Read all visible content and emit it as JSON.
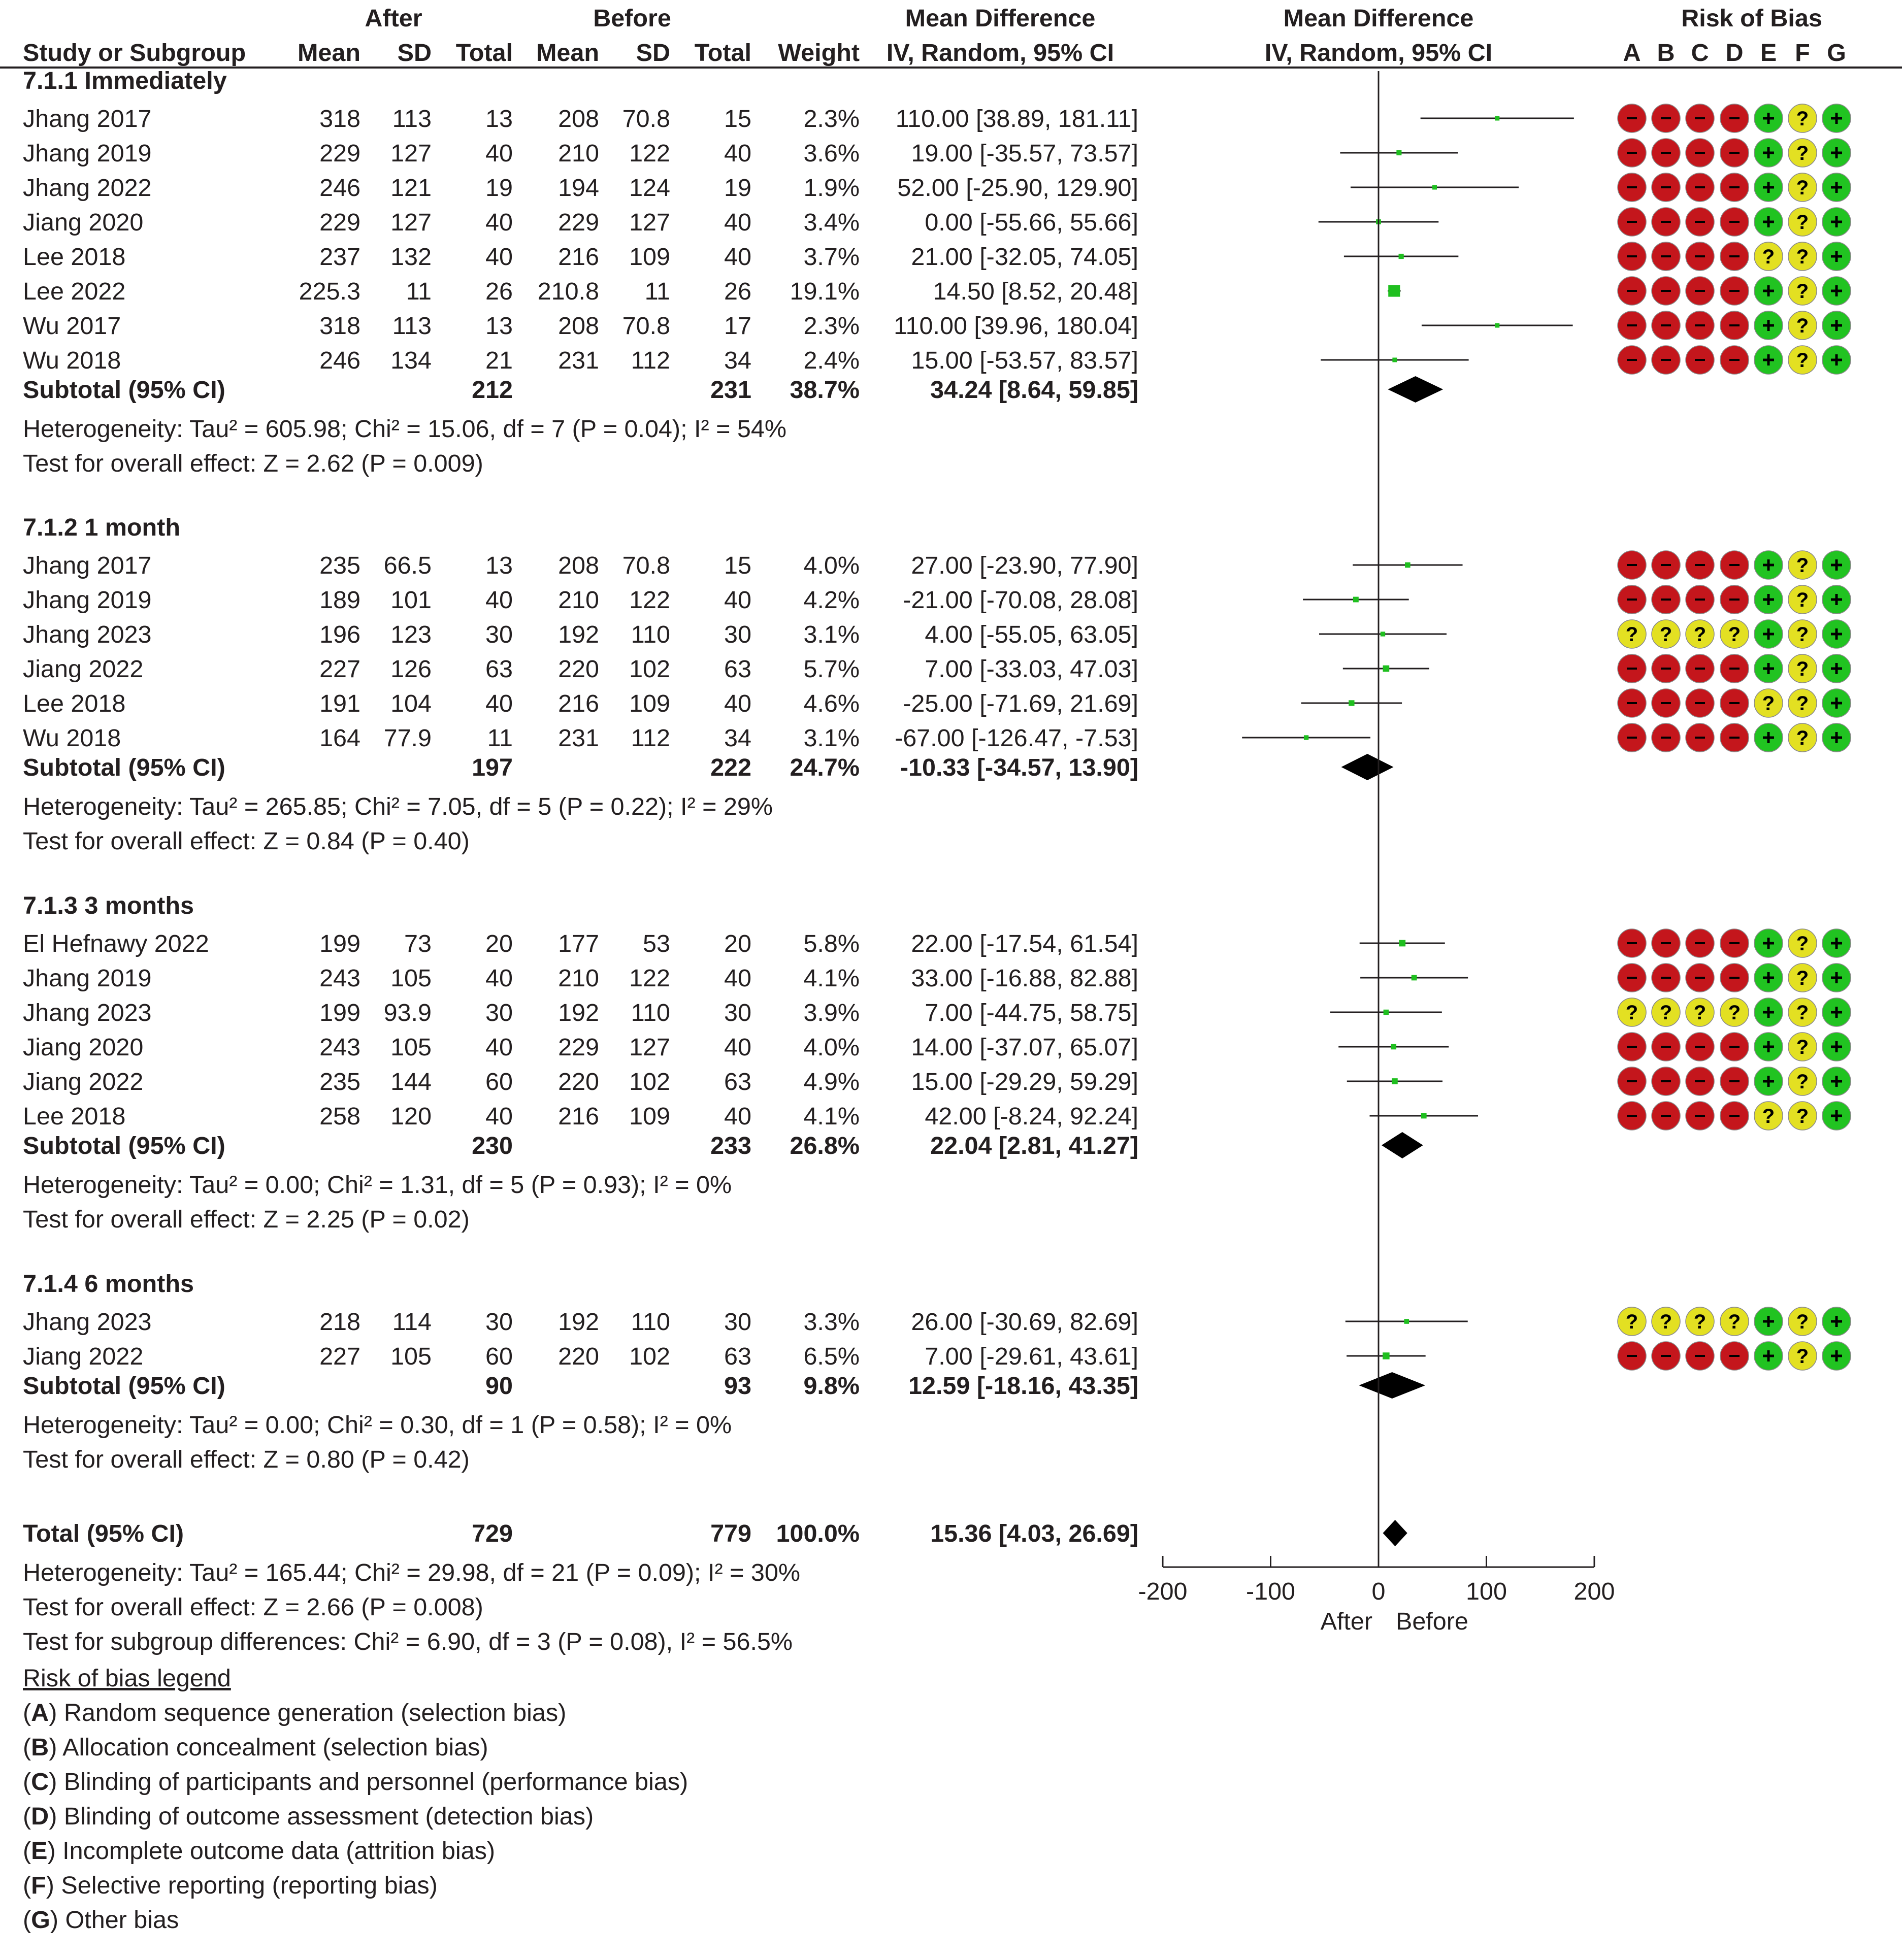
{
  "chart_data": {
    "type": "forest",
    "column_groups": [
      "After",
      "Before",
      "Mean Difference",
      "Mean Difference",
      "Risk of Bias"
    ],
    "columns": [
      "Study or Subgroup",
      "Mean",
      "SD",
      "Total",
      "Mean",
      "SD",
      "Total",
      "Weight",
      "IV, Random, 95% CI",
      "IV, Random, 95% CI"
    ],
    "bias_columns": [
      "A",
      "B",
      "C",
      "D",
      "E",
      "F",
      "G"
    ],
    "subgroups": [
      {
        "title": "7.1.1 Immediately",
        "studies": [
          {
            "study": "Jhang 2017",
            "after_mean": "318",
            "after_sd": "113",
            "after_total": "13",
            "before_mean": "208",
            "before_sd": "70.8",
            "before_total": "15",
            "weight": "2.3%",
            "ci_text": "110.00 [38.89, 181.11]",
            "md": 110.0,
            "lo": 38.89,
            "hi": 181.11,
            "w": 2.3,
            "bias": [
              "-",
              "-",
              "-",
              "-",
              "+",
              "?",
              "+"
            ]
          },
          {
            "study": "Jhang 2019",
            "after_mean": "229",
            "after_sd": "127",
            "after_total": "40",
            "before_mean": "210",
            "before_sd": "122",
            "before_total": "40",
            "weight": "3.6%",
            "ci_text": "19.00 [-35.57, 73.57]",
            "md": 19.0,
            "lo": -35.57,
            "hi": 73.57,
            "w": 3.6,
            "bias": [
              "-",
              "-",
              "-",
              "-",
              "+",
              "?",
              "+"
            ]
          },
          {
            "study": "Jhang 2022",
            "after_mean": "246",
            "after_sd": "121",
            "after_total": "19",
            "before_mean": "194",
            "before_sd": "124",
            "before_total": "19",
            "weight": "1.9%",
            "ci_text": "52.00 [-25.90, 129.90]",
            "md": 52.0,
            "lo": -25.9,
            "hi": 129.9,
            "w": 1.9,
            "bias": [
              "-",
              "-",
              "-",
              "-",
              "+",
              "?",
              "+"
            ]
          },
          {
            "study": "Jiang 2020",
            "after_mean": "229",
            "after_sd": "127",
            "after_total": "40",
            "before_mean": "229",
            "before_sd": "127",
            "before_total": "40",
            "weight": "3.4%",
            "ci_text": "0.00 [-55.66, 55.66]",
            "md": 0.0,
            "lo": -55.66,
            "hi": 55.66,
            "w": 3.4,
            "bias": [
              "-",
              "-",
              "-",
              "-",
              "+",
              "?",
              "+"
            ]
          },
          {
            "study": "Lee 2018",
            "after_mean": "237",
            "after_sd": "132",
            "after_total": "40",
            "before_mean": "216",
            "before_sd": "109",
            "before_total": "40",
            "weight": "3.7%",
            "ci_text": "21.00 [-32.05, 74.05]",
            "md": 21.0,
            "lo": -32.05,
            "hi": 74.05,
            "w": 3.7,
            "bias": [
              "-",
              "-",
              "-",
              "-",
              "?",
              "?",
              "+"
            ]
          },
          {
            "study": "Lee 2022",
            "after_mean": "225.3",
            "after_sd": "11",
            "after_total": "26",
            "before_mean": "210.8",
            "before_sd": "11",
            "before_total": "26",
            "weight": "19.1%",
            "ci_text": "14.50 [8.52, 20.48]",
            "md": 14.5,
            "lo": 8.52,
            "hi": 20.48,
            "w": 19.1,
            "bias": [
              "-",
              "-",
              "-",
              "-",
              "+",
              "?",
              "+"
            ]
          },
          {
            "study": "Wu 2017",
            "after_mean": "318",
            "after_sd": "113",
            "after_total": "13",
            "before_mean": "208",
            "before_sd": "70.8",
            "before_total": "17",
            "weight": "2.3%",
            "ci_text": "110.00 [39.96, 180.04]",
            "md": 110.0,
            "lo": 39.96,
            "hi": 180.04,
            "w": 2.3,
            "bias": [
              "-",
              "-",
              "-",
              "-",
              "+",
              "?",
              "+"
            ]
          },
          {
            "study": "Wu 2018",
            "after_mean": "246",
            "after_sd": "134",
            "after_total": "21",
            "before_mean": "231",
            "before_sd": "112",
            "before_total": "34",
            "weight": "2.4%",
            "ci_text": "15.00 [-53.57, 83.57]",
            "md": 15.0,
            "lo": -53.57,
            "hi": 83.57,
            "w": 2.4,
            "bias": [
              "-",
              "-",
              "-",
              "-",
              "+",
              "?",
              "+"
            ]
          }
        ],
        "subtotal": {
          "label": "Subtotal (95% CI)",
          "after_total": "212",
          "before_total": "231",
          "weight": "38.7%",
          "ci_text": "34.24 [8.64, 59.85]",
          "md": 34.24,
          "lo": 8.64,
          "hi": 59.85
        },
        "heterogeneity": "Heterogeneity: Tau² = 605.98; Chi² = 15.06, df = 7 (P = 0.04); I² = 54%",
        "overall": "Test for overall effect: Z = 2.62 (P = 0.009)"
      },
      {
        "title": "7.1.2 1 month",
        "studies": [
          {
            "study": "Jhang 2017",
            "after_mean": "235",
            "after_sd": "66.5",
            "after_total": "13",
            "before_mean": "208",
            "before_sd": "70.8",
            "before_total": "15",
            "weight": "4.0%",
            "ci_text": "27.00 [-23.90, 77.90]",
            "md": 27.0,
            "lo": -23.9,
            "hi": 77.9,
            "w": 4.0,
            "bias": [
              "-",
              "-",
              "-",
              "-",
              "+",
              "?",
              "+"
            ]
          },
          {
            "study": "Jhang 2019",
            "after_mean": "189",
            "after_sd": "101",
            "after_total": "40",
            "before_mean": "210",
            "before_sd": "122",
            "before_total": "40",
            "weight": "4.2%",
            "ci_text": "-21.00 [-70.08, 28.08]",
            "md": -21.0,
            "lo": -70.08,
            "hi": 28.08,
            "w": 4.2,
            "bias": [
              "-",
              "-",
              "-",
              "-",
              "+",
              "?",
              "+"
            ]
          },
          {
            "study": "Jhang 2023",
            "after_mean": "196",
            "after_sd": "123",
            "after_total": "30",
            "before_mean": "192",
            "before_sd": "110",
            "before_total": "30",
            "weight": "3.1%",
            "ci_text": "4.00 [-55.05, 63.05]",
            "md": 4.0,
            "lo": -55.05,
            "hi": 63.05,
            "w": 3.1,
            "bias": [
              "?",
              "?",
              "?",
              "?",
              "+",
              "?",
              "+"
            ]
          },
          {
            "study": "Jiang 2022",
            "after_mean": "227",
            "after_sd": "126",
            "after_total": "63",
            "before_mean": "220",
            "before_sd": "102",
            "before_total": "63",
            "weight": "5.7%",
            "ci_text": "7.00 [-33.03, 47.03]",
            "md": 7.0,
            "lo": -33.03,
            "hi": 47.03,
            "w": 5.7,
            "bias": [
              "-",
              "-",
              "-",
              "-",
              "+",
              "?",
              "+"
            ]
          },
          {
            "study": "Lee 2018",
            "after_mean": "191",
            "after_sd": "104",
            "after_total": "40",
            "before_mean": "216",
            "before_sd": "109",
            "before_total": "40",
            "weight": "4.6%",
            "ci_text": "-25.00 [-71.69, 21.69]",
            "md": -25.0,
            "lo": -71.69,
            "hi": 21.69,
            "w": 4.6,
            "bias": [
              "-",
              "-",
              "-",
              "-",
              "?",
              "?",
              "+"
            ]
          },
          {
            "study": "Wu 2018",
            "after_mean": "164",
            "after_sd": "77.9",
            "after_total": "11",
            "before_mean": "231",
            "before_sd": "112",
            "before_total": "34",
            "weight": "3.1%",
            "ci_text": "-67.00 [-126.47, -7.53]",
            "md": -67.0,
            "lo": -126.47,
            "hi": -7.53,
            "w": 3.1,
            "bias": [
              "-",
              "-",
              "-",
              "-",
              "+",
              "?",
              "+"
            ]
          }
        ],
        "subtotal": {
          "label": "Subtotal (95% CI)",
          "after_total": "197",
          "before_total": "222",
          "weight": "24.7%",
          "ci_text": "-10.33 [-34.57, 13.90]",
          "md": -10.33,
          "lo": -34.57,
          "hi": 13.9
        },
        "heterogeneity": "Heterogeneity: Tau² = 265.85; Chi² = 7.05, df = 5 (P = 0.22); I² = 29%",
        "overall": "Test for overall effect: Z = 0.84 (P = 0.40)"
      },
      {
        "title": "7.1.3 3 months",
        "studies": [
          {
            "study": "El Hefnawy 2022",
            "after_mean": "199",
            "after_sd": "73",
            "after_total": "20",
            "before_mean": "177",
            "before_sd": "53",
            "before_total": "20",
            "weight": "5.8%",
            "ci_text": "22.00 [-17.54, 61.54]",
            "md": 22.0,
            "lo": -17.54,
            "hi": 61.54,
            "w": 5.8,
            "bias": [
              "-",
              "-",
              "-",
              "-",
              "+",
              "?",
              "+"
            ]
          },
          {
            "study": "Jhang 2019",
            "after_mean": "243",
            "after_sd": "105",
            "after_total": "40",
            "before_mean": "210",
            "before_sd": "122",
            "before_total": "40",
            "weight": "4.1%",
            "ci_text": "33.00 [-16.88, 82.88]",
            "md": 33.0,
            "lo": -16.88,
            "hi": 82.88,
            "w": 4.1,
            "bias": [
              "-",
              "-",
              "-",
              "-",
              "+",
              "?",
              "+"
            ]
          },
          {
            "study": "Jhang 2023",
            "after_mean": "199",
            "after_sd": "93.9",
            "after_total": "30",
            "before_mean": "192",
            "before_sd": "110",
            "before_total": "30",
            "weight": "3.9%",
            "ci_text": "7.00 [-44.75, 58.75]",
            "md": 7.0,
            "lo": -44.75,
            "hi": 58.75,
            "w": 3.9,
            "bias": [
              "?",
              "?",
              "?",
              "?",
              "+",
              "?",
              "+"
            ]
          },
          {
            "study": "Jiang 2020",
            "after_mean": "243",
            "after_sd": "105",
            "after_total": "40",
            "before_mean": "229",
            "before_sd": "127",
            "before_total": "40",
            "weight": "4.0%",
            "ci_text": "14.00 [-37.07, 65.07]",
            "md": 14.0,
            "lo": -37.07,
            "hi": 65.07,
            "w": 4.0,
            "bias": [
              "-",
              "-",
              "-",
              "-",
              "+",
              "?",
              "+"
            ]
          },
          {
            "study": "Jiang 2022",
            "after_mean": "235",
            "after_sd": "144",
            "after_total": "60",
            "before_mean": "220",
            "before_sd": "102",
            "before_total": "63",
            "weight": "4.9%",
            "ci_text": "15.00 [-29.29, 59.29]",
            "md": 15.0,
            "lo": -29.29,
            "hi": 59.29,
            "w": 4.9,
            "bias": [
              "-",
              "-",
              "-",
              "-",
              "+",
              "?",
              "+"
            ]
          },
          {
            "study": "Lee 2018",
            "after_mean": "258",
            "after_sd": "120",
            "after_total": "40",
            "before_mean": "216",
            "before_sd": "109",
            "before_total": "40",
            "weight": "4.1%",
            "ci_text": "42.00 [-8.24, 92.24]",
            "md": 42.0,
            "lo": -8.24,
            "hi": 92.24,
            "w": 4.1,
            "bias": [
              "-",
              "-",
              "-",
              "-",
              "?",
              "?",
              "+"
            ]
          }
        ],
        "subtotal": {
          "label": "Subtotal (95% CI)",
          "after_total": "230",
          "before_total": "233",
          "weight": "26.8%",
          "ci_text": "22.04 [2.81, 41.27]",
          "md": 22.04,
          "lo": 2.81,
          "hi": 41.27
        },
        "heterogeneity": "Heterogeneity: Tau² = 0.00; Chi² = 1.31, df = 5 (P = 0.93); I² = 0%",
        "overall": "Test for overall effect: Z = 2.25 (P = 0.02)"
      },
      {
        "title": "7.1.4 6 months",
        "studies": [
          {
            "study": "Jhang 2023",
            "after_mean": "218",
            "after_sd": "114",
            "after_total": "30",
            "before_mean": "192",
            "before_sd": "110",
            "before_total": "30",
            "weight": "3.3%",
            "ci_text": "26.00 [-30.69, 82.69]",
            "md": 26.0,
            "lo": -30.69,
            "hi": 82.69,
            "w": 3.3,
            "bias": [
              "?",
              "?",
              "?",
              "?",
              "+",
              "?",
              "+"
            ]
          },
          {
            "study": "Jiang 2022",
            "after_mean": "227",
            "after_sd": "105",
            "after_total": "60",
            "before_mean": "220",
            "before_sd": "102",
            "before_total": "63",
            "weight": "6.5%",
            "ci_text": "7.00 [-29.61, 43.61]",
            "md": 7.0,
            "lo": -29.61,
            "hi": 43.61,
            "w": 6.5,
            "bias": [
              "-",
              "-",
              "-",
              "-",
              "+",
              "?",
              "+"
            ]
          }
        ],
        "subtotal": {
          "label": "Subtotal (95% CI)",
          "after_total": "90",
          "before_total": "93",
          "weight": "9.8%",
          "ci_text": "12.59 [-18.16, 43.35]",
          "md": 12.59,
          "lo": -18.16,
          "hi": 43.35
        },
        "heterogeneity": "Heterogeneity: Tau² = 0.00; Chi² = 0.30, df = 1 (P = 0.58); I² = 0%",
        "overall": "Test for overall effect: Z = 0.80 (P = 0.42)"
      }
    ],
    "total": {
      "label": "Total (95% CI)",
      "after_total": "729",
      "before_total": "779",
      "weight": "100.0%",
      "ci_text": "15.36 [4.03, 26.69]",
      "md": 15.36,
      "lo": 4.03,
      "hi": 26.69
    },
    "total_heterogeneity": "Heterogeneity: Tau² = 165.44; Chi² = 29.98, df = 21 (P = 0.09); I² = 30%",
    "total_overall": "Test for overall effect: Z = 2.66 (P = 0.008)",
    "subgroup_differences": "Test for subgroup differences: Chi² = 6.90, df = 3 (P = 0.08), I² = 56.5%",
    "x_axis": {
      "range": [
        -200,
        200
      ],
      "ticks": [
        -200,
        -100,
        0,
        100,
        200
      ],
      "tick_labels": [
        "-200",
        "-100",
        "0",
        "100",
        "200"
      ],
      "favours_left": "After",
      "favours_right": "Before"
    },
    "bias_legend": {
      "title": "Risk of bias legend",
      "items": [
        {
          "key": "A",
          "text": ") Random sequence generation (selection bias)"
        },
        {
          "key": "B",
          "text": ") Allocation concealment (selection bias)"
        },
        {
          "key": "C",
          "text": ") Blinding of participants and personnel (performance bias)"
        },
        {
          "key": "D",
          "text": ") Blinding of outcome assessment (detection bias)"
        },
        {
          "key": "E",
          "text": ") Incomplete outcome data (attrition bias)"
        },
        {
          "key": "F",
          "text": ") Selective reporting (reporting bias)"
        },
        {
          "key": "G",
          "text": ") Other bias"
        }
      ]
    },
    "colors": {
      "high": "#c4161c",
      "unclear": "#e3e022",
      "low": "#21c321",
      "square": "#1fbf1f",
      "diamond": "#000000",
      "text": "#231f20"
    }
  }
}
